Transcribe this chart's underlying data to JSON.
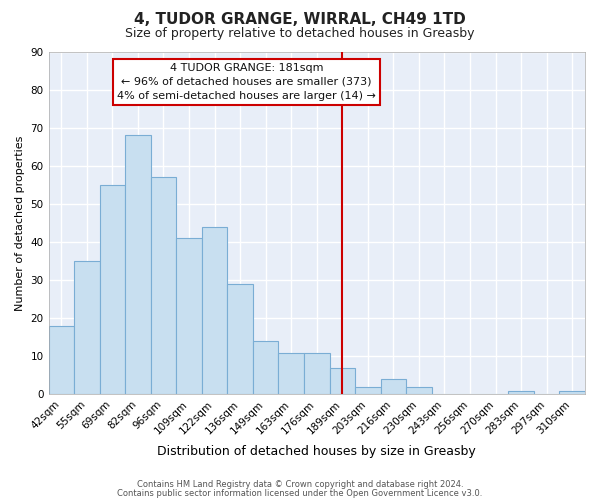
{
  "title": "4, TUDOR GRANGE, WIRRAL, CH49 1TD",
  "subtitle": "Size of property relative to detached houses in Greasby",
  "xlabel": "Distribution of detached houses by size in Greasby",
  "ylabel": "Number of detached properties",
  "bar_labels": [
    "42sqm",
    "55sqm",
    "69sqm",
    "82sqm",
    "96sqm",
    "109sqm",
    "122sqm",
    "136sqm",
    "149sqm",
    "163sqm",
    "176sqm",
    "189sqm",
    "203sqm",
    "216sqm",
    "230sqm",
    "243sqm",
    "256sqm",
    "270sqm",
    "283sqm",
    "297sqm",
    "310sqm"
  ],
  "bar_values": [
    18,
    35,
    55,
    68,
    57,
    41,
    44,
    29,
    14,
    11,
    11,
    7,
    2,
    4,
    2,
    0,
    0,
    0,
    1,
    0,
    1
  ],
  "bar_color": "#c8dff0",
  "bar_edge_color": "#7aadd4",
  "vline_x": 11.0,
  "vline_color": "#cc0000",
  "annotation_title": "4 TUDOR GRANGE: 181sqm",
  "annotation_line1": "← 96% of detached houses are smaller (373)",
  "annotation_line2": "4% of semi-detached houses are larger (14) →",
  "annotation_box_facecolor": "#ffffff",
  "annotation_box_edgecolor": "#cc0000",
  "ylim": [
    0,
    90
  ],
  "yticks": [
    0,
    10,
    20,
    30,
    40,
    50,
    60,
    70,
    80,
    90
  ],
  "fig_bg_color": "#ffffff",
  "plot_bg_color": "#e8eef8",
  "grid_color": "#ffffff",
  "footer1": "Contains HM Land Registry data © Crown copyright and database right 2024.",
  "footer2": "Contains public sector information licensed under the Open Government Licence v3.0.",
  "title_fontsize": 11,
  "subtitle_fontsize": 9,
  "ylabel_fontsize": 8,
  "xlabel_fontsize": 9,
  "tick_fontsize": 7.5,
  "footer_fontsize": 6,
  "annot_fontsize": 8
}
